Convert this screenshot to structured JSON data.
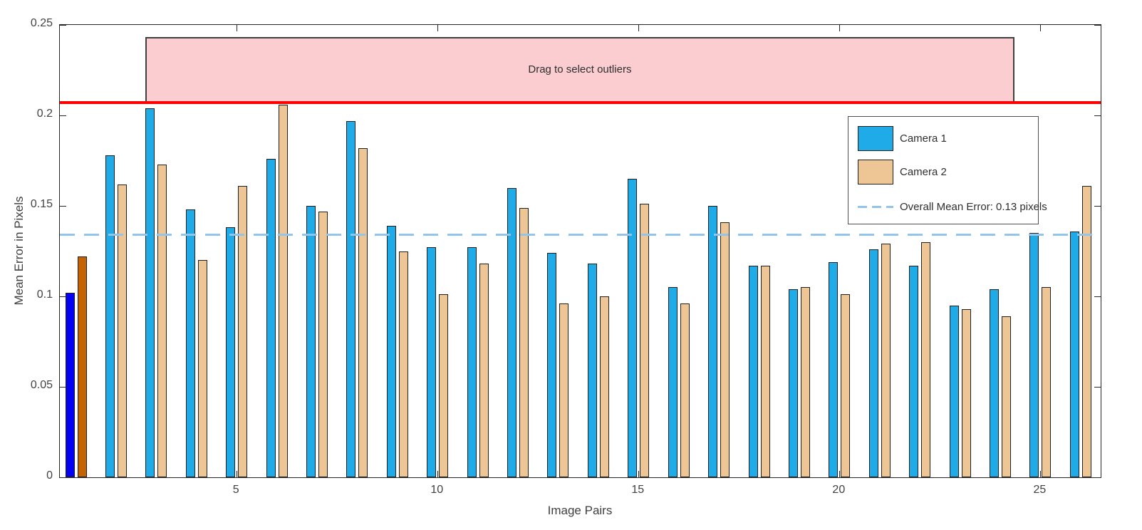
{
  "chart_data": {
    "type": "bar",
    "title": "",
    "xlabel": "Image Pairs",
    "ylabel": "Mean Error in Pixels",
    "xlim": [
      0.6,
      26.5
    ],
    "ylim": [
      0,
      0.25
    ],
    "x_ticks": [
      5,
      10,
      15,
      20,
      25
    ],
    "y_ticks": [
      0,
      0.05,
      0.1,
      0.15,
      0.2,
      0.25
    ],
    "grid": false,
    "legend_position": "upper-right-inside",
    "categories": [
      1,
      2,
      3,
      4,
      5,
      6,
      7,
      8,
      9,
      10,
      11,
      12,
      13,
      14,
      15,
      16,
      17,
      18,
      19,
      20,
      21,
      22,
      23,
      24,
      25,
      26
    ],
    "series": [
      {
        "name": "Camera 1",
        "color": "#1FAAE8",
        "selected_color": "#0502F2",
        "values": [
          0.102,
          0.178,
          0.204,
          0.148,
          0.138,
          0.176,
          0.15,
          0.197,
          0.139,
          0.127,
          0.127,
          0.16,
          0.124,
          0.118,
          0.165,
          0.105,
          0.15,
          0.117,
          0.104,
          0.119,
          0.126,
          0.117,
          0.095,
          0.104,
          0.135,
          0.136
        ]
      },
      {
        "name": "Camera 2",
        "color": "#EEC594",
        "selected_color": "#C56300",
        "values": [
          0.122,
          0.162,
          0.173,
          0.12,
          0.161,
          0.206,
          0.147,
          0.182,
          0.125,
          0.101,
          0.118,
          0.149,
          0.096,
          0.1,
          0.151,
          0.096,
          0.141,
          0.117,
          0.105,
          0.101,
          0.129,
          0.13,
          0.093,
          0.089,
          0.105,
          0.161
        ]
      }
    ],
    "selected_pair_index": 0,
    "threshold_line": {
      "value": 0.207,
      "color": "#FF0000"
    },
    "mean_line": {
      "value": 0.134,
      "color": "#92C5E9",
      "style": "dashed",
      "label": "Overall Mean Error: 0.13 pixels"
    },
    "selection_overlay": {
      "label": "Drag to select outliers",
      "x_start": 2.73,
      "x_end": 24.35,
      "y_start": 0.207,
      "y_end": 0.2435,
      "fill": "#FBCDD1",
      "border": "#3F3F3F"
    }
  },
  "legend": {
    "items": [
      {
        "label": "Camera 1",
        "swatch_type": "patch"
      },
      {
        "label": "Camera 2",
        "swatch_type": "patch"
      },
      {
        "label": "Overall Mean Error: 0.13 pixels",
        "swatch_type": "dashed-line"
      }
    ]
  }
}
